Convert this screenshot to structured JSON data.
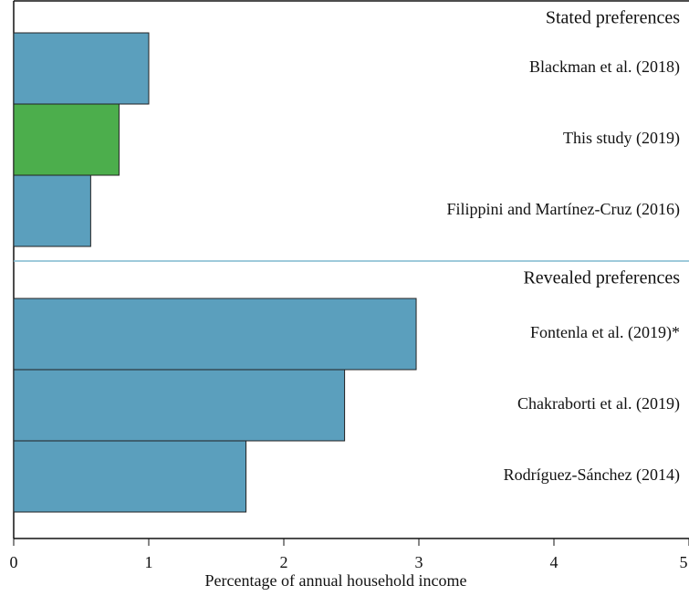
{
  "chart_data": {
    "type": "bar",
    "orientation": "horizontal",
    "xlabel": "Percentage of annual household income",
    "xlim": [
      0,
      5
    ],
    "xticks": [
      0,
      1,
      2,
      3,
      4,
      5
    ],
    "groups": [
      {
        "name": "Stated preferences",
        "categories": [
          "Blackman et al. (2018)",
          "This study (2019)",
          "Filippini and Martínez-Cruz (2016)"
        ],
        "values": [
          1.0,
          0.78,
          0.57
        ],
        "colors": [
          "#5b9fbd",
          "#4cae4c",
          "#5b9fbd"
        ]
      },
      {
        "name": "Revealed preferences",
        "categories": [
          "Fontenla et al. (2019)*",
          "Chakraborti et al. (2019)",
          "Rodríguez-Sánchez (2014)"
        ],
        "values": [
          2.98,
          2.45,
          1.72
        ],
        "colors": [
          "#5b9fbd",
          "#5b9fbd",
          "#5b9fbd"
        ]
      }
    ]
  }
}
